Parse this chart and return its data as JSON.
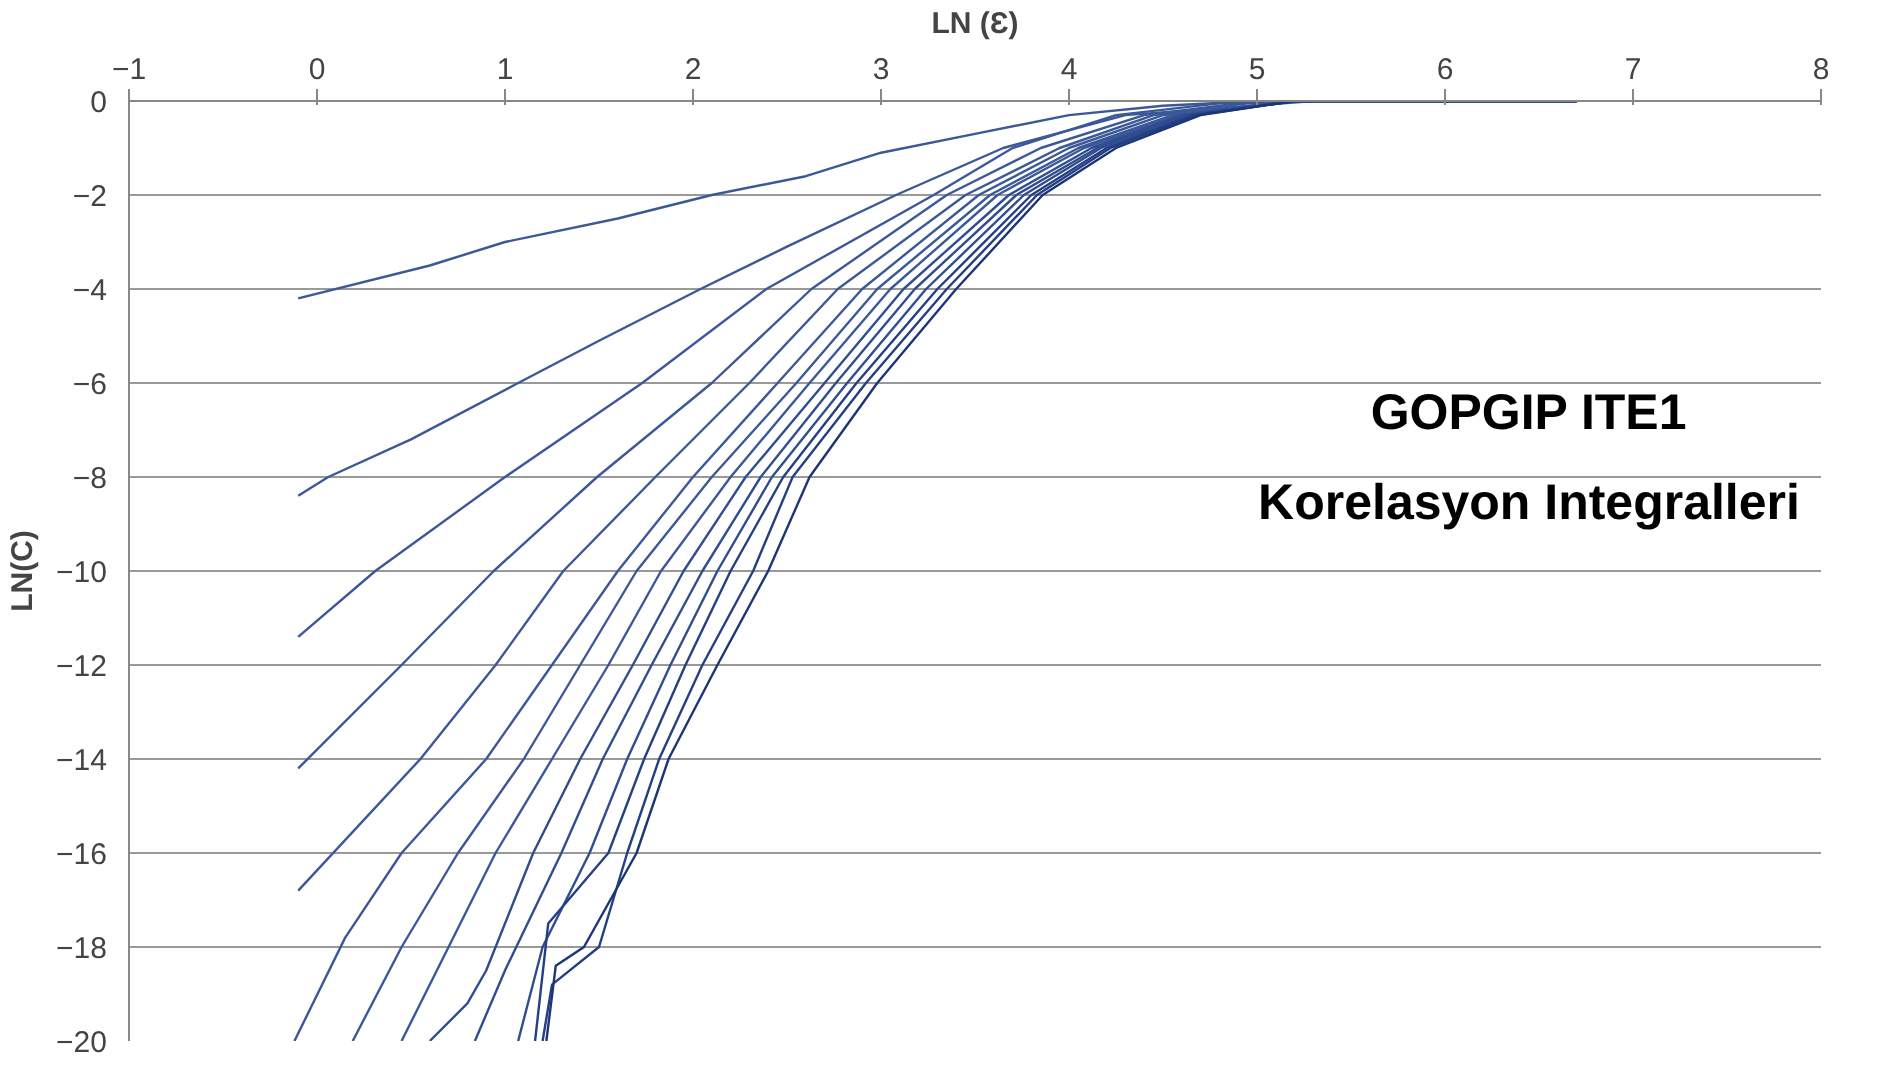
{
  "chart_data": {
    "type": "line",
    "xlabel": "LN (Ɛ)",
    "ylabel": "LN(C)",
    "annotations": [
      "GOPGIP ITE1",
      "Korelasyon Integralleri"
    ],
    "xlim": [
      -1,
      8
    ],
    "xticks": [
      -1,
      0,
      1,
      2,
      3,
      4,
      5,
      6,
      7,
      8
    ],
    "ylim": [
      -20,
      0
    ],
    "yticks": [
      -20,
      -18,
      -16,
      -14,
      -12,
      -10,
      -8,
      -6,
      -4,
      -2,
      0
    ],
    "grid": "y",
    "line_style": "solid",
    "marker": "none",
    "series": [
      {
        "color": "#3b5898",
        "x": [
          -0.1,
          0.6,
          1,
          1.6,
          2.1,
          2.6,
          3,
          3.5,
          4,
          4.5,
          5,
          6.7
        ],
        "values": [
          -4.2,
          -3.5,
          -3.0,
          -2.5,
          -2.0,
          -1.6,
          -1.1,
          -0.7,
          -0.3,
          -0.1,
          0,
          0
        ]
      },
      {
        "color": "#3b5898",
        "x": [
          -0.1,
          0.06,
          0.5,
          1.07,
          1.5,
          2.04,
          2.5,
          3.08,
          3.65,
          4.3,
          5.3,
          6.7
        ],
        "values": [
          -8.4,
          -8,
          -7.2,
          -6,
          -5.1,
          -4,
          -3.1,
          -2,
          -1,
          -0.3,
          0,
          0
        ]
      },
      {
        "color": "#3b5898",
        "x": [
          -0.1,
          0.31,
          1.0,
          1.73,
          2.39,
          3.28,
          3.7,
          4.25,
          4.8,
          5.3,
          6.7
        ],
        "values": [
          -11.4,
          -10,
          -8,
          -6,
          -4,
          -2,
          -1,
          -0.3,
          -0.05,
          0,
          0
        ]
      },
      {
        "color": "#3b5898",
        "x": [
          -0.1,
          0.45,
          0.94,
          1.49,
          2.1,
          2.63,
          3.35,
          3.85,
          4.4,
          4.9,
          5.3,
          6.7
        ],
        "values": [
          -14.2,
          -12,
          -10,
          -8,
          -6,
          -4,
          -2,
          -1,
          -0.3,
          -0.05,
          0,
          0
        ]
      },
      {
        "color": "#3b5898",
        "x": [
          -0.1,
          0.55,
          0.95,
          1.31,
          1.8,
          2.3,
          2.77,
          3.45,
          3.95,
          4.45,
          4.95,
          5.3,
          6.7
        ],
        "values": [
          -16.8,
          -14,
          -12,
          -10,
          -8,
          -6,
          -4,
          -2,
          -1,
          -0.3,
          -0.05,
          0,
          0
        ]
      },
      {
        "color": "#3b5898",
        "x": [
          -0.12,
          0.15,
          0.45,
          0.9,
          1.25,
          1.6,
          2.0,
          2.45,
          2.9,
          3.52,
          4.0,
          4.5,
          5.2,
          6.7
        ],
        "values": [
          -20,
          -17.8,
          -16,
          -14,
          -12,
          -10,
          -8,
          -6,
          -4,
          -2,
          -1,
          -0.3,
          0,
          0
        ]
      },
      {
        "color": "#3b5898",
        "x": [
          0.19,
          0.45,
          0.75,
          1.1,
          1.4,
          1.7,
          2.1,
          2.55,
          2.98,
          3.58,
          4.05,
          4.55,
          5.2,
          6.7
        ],
        "values": [
          -20,
          -18,
          -16,
          -14,
          -12,
          -10,
          -8,
          -6,
          -4,
          -2,
          -1,
          -0.3,
          0,
          0
        ]
      },
      {
        "color": "#3b5898",
        "x": [
          0.45,
          0.7,
          0.95,
          1.25,
          1.55,
          1.83,
          2.2,
          2.62,
          3.05,
          3.62,
          4.08,
          4.58,
          5.2,
          6.7
        ],
        "values": [
          -20,
          -18,
          -16,
          -14,
          -12,
          -10,
          -8,
          -6,
          -4,
          -2,
          -1,
          -0.3,
          0,
          0
        ]
      },
      {
        "color": "#2f4d8f",
        "x": [
          0.6,
          0.8,
          0.9,
          1.15,
          1.4,
          1.68,
          1.95,
          2.28,
          2.7,
          3.12,
          3.68,
          4.12,
          4.6,
          5.2,
          6.7
        ],
        "values": [
          -20,
          -19.2,
          -18.5,
          -16,
          -14,
          -12,
          -10,
          -8,
          -6,
          -4,
          -2,
          -1,
          -0.3,
          0,
          0
        ]
      },
      {
        "color": "#2f4d8f",
        "x": [
          0.84,
          1.0,
          1.3,
          1.52,
          1.78,
          2.05,
          2.36,
          2.76,
          3.18,
          3.72,
          4.15,
          4.62,
          5.2,
          6.7
        ],
        "values": [
          -20,
          -18.5,
          -16,
          -14,
          -12,
          -10,
          -8,
          -6,
          -4,
          -2,
          -1,
          -0.3,
          0,
          0
        ]
      },
      {
        "color": "#2f4d8f",
        "x": [
          1.07,
          1.2,
          1.45,
          1.65,
          1.88,
          2.13,
          2.42,
          2.82,
          3.24,
          3.76,
          4.17,
          4.64,
          5.2,
          6.7
        ],
        "values": [
          -20,
          -18,
          -16,
          -14,
          -12,
          -10,
          -8,
          -6,
          -4,
          -2,
          -1,
          -0.3,
          0,
          0
        ]
      },
      {
        "color": "#243f82",
        "x": [
          1.16,
          1.23,
          1.55,
          1.74,
          1.96,
          2.2,
          2.48,
          2.87,
          3.3,
          3.8,
          4.2,
          4.66,
          5.2,
          6.7
        ],
        "values": [
          -20,
          -17.5,
          -16,
          -14,
          -12,
          -10,
          -8,
          -6,
          -4,
          -2,
          -1,
          -0.3,
          0,
          0
        ]
      },
      {
        "color": "#243f82",
        "x": [
          1.2,
          1.25,
          1.5,
          1.65,
          1.82,
          2.05,
          2.32,
          2.53,
          2.92,
          3.35,
          3.83,
          4.22,
          4.68,
          5.2,
          6.7
        ],
        "values": [
          -20,
          -18.8,
          -18,
          -16,
          -14,
          -12,
          -10,
          -8,
          -6,
          -4,
          -2,
          -1,
          -0.3,
          0,
          0
        ]
      },
      {
        "color": "#1c3577",
        "x": [
          1.22,
          1.27,
          1.42,
          1.7,
          1.87,
          2.13,
          2.4,
          2.62,
          2.98,
          3.4,
          3.86,
          4.25,
          4.7,
          5.2,
          6.7
        ],
        "values": [
          -20,
          -18.4,
          -18,
          -16,
          -14,
          -12,
          -10,
          -8,
          -6,
          -4,
          -2,
          -1,
          -0.3,
          0,
          0
        ]
      }
    ]
  }
}
